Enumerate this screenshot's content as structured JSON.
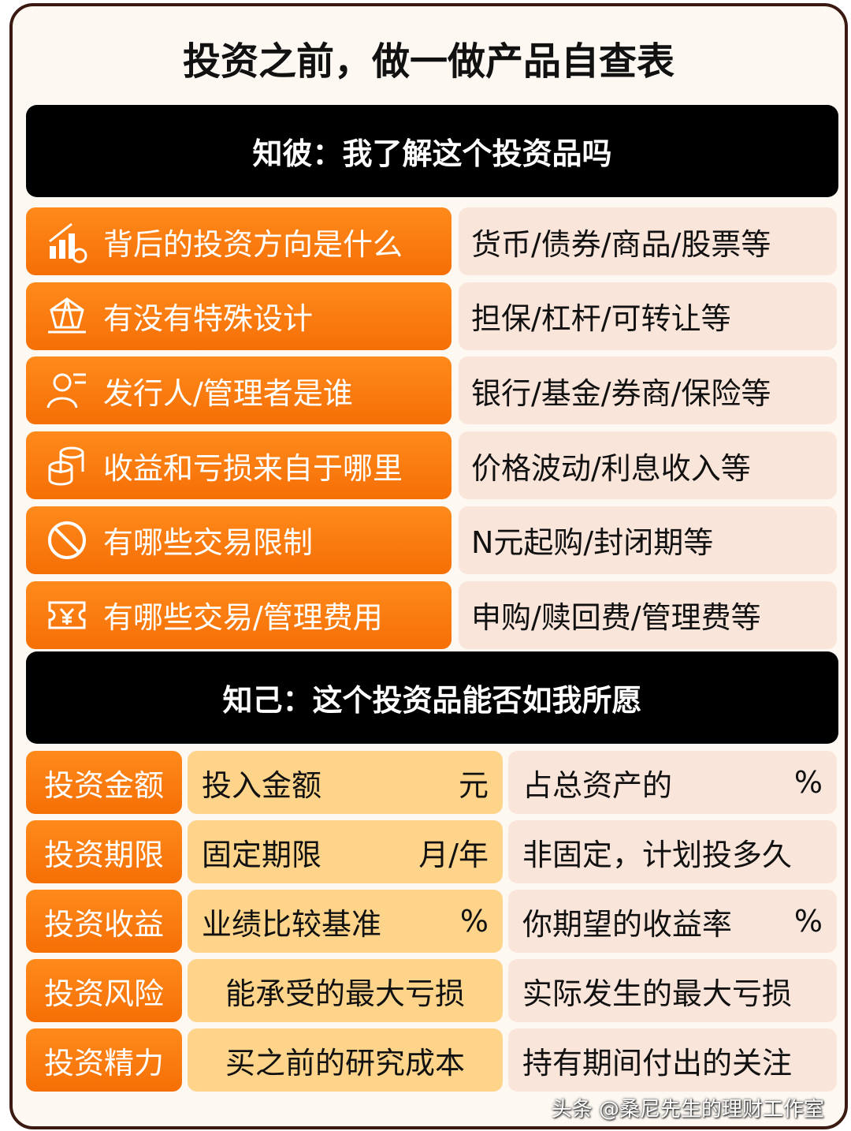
{
  "title": "投资之前，做一做产品自查表",
  "section1": {
    "header": "知彼：我了解这个投资品吗",
    "rows": [
      {
        "icon": "chart-growth-icon",
        "question": "背后的投资方向是什么",
        "answer": "货币/债券/商品/股票等"
      },
      {
        "icon": "diamond-icon",
        "question": "有没有特殊设计",
        "answer": "担保/杠杆/可转让等"
      },
      {
        "icon": "person-icon",
        "question": "发行人/管理者是谁",
        "answer": "银行/基金/券商/保险等"
      },
      {
        "icon": "coins-icon",
        "question": "收益和亏损来自于哪里",
        "answer": "价格波动/利息收入等"
      },
      {
        "icon": "prohibited-icon",
        "question": "有哪些交易限制",
        "answer": "N元起购/封闭期等"
      },
      {
        "icon": "yuan-ticket-icon",
        "question": "有哪些交易/管理费用",
        "answer": "申购/赎回费/管理费等"
      }
    ]
  },
  "section2": {
    "header": "知己：这个投资品能否如我所愿",
    "rows": [
      {
        "label": "投资金额",
        "c1": "投入金额",
        "c1u": "元",
        "c2": "占总资产的",
        "c2u": "%"
      },
      {
        "label": "投资期限",
        "c1": "固定期限",
        "c1u": "月/年",
        "c2": "非固定，计划投多久",
        "c2u": ""
      },
      {
        "label": "投资收益",
        "c1": "业绩比较基准",
        "c1u": "%",
        "c2": "你期望的收益率",
        "c2u": "%"
      },
      {
        "label": "投资风险",
        "c1": "能承受的最大亏损",
        "c1u": "",
        "c2": "实际发生的最大亏损",
        "c2u": ""
      },
      {
        "label": "投资精力",
        "c1": "买之前的研究成本",
        "c1u": "",
        "c2": "持有期间付出的关注",
        "c2u": ""
      }
    ]
  },
  "watermark": "头条 @桑尼先生的理财工作室",
  "colors": {
    "orange": "#f77a0f",
    "pink": "#fae5da",
    "yellow": "#fdd48a",
    "black": "#000000",
    "background": "#fdf8f2"
  }
}
